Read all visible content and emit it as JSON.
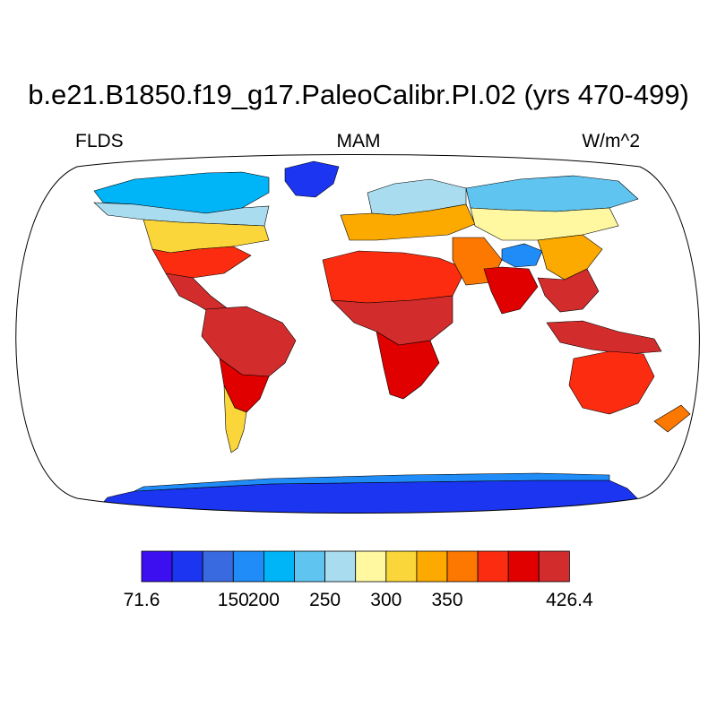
{
  "title": "b.e21.B1850.f19_g17.PaleoCalibr.PI.02 (yrs 470-499)",
  "left_string": "FLDS",
  "center_string": "MAM",
  "right_string": "W/m^2",
  "map": {
    "projection": "Robinson",
    "field": "Downwelling longwave flux at surface over land (colored land only, ocean white)",
    "regions": [
      {
        "name": "arctic-canada-greenland",
        "level": 4
      },
      {
        "name": "north-america-mid",
        "level": 8
      },
      {
        "name": "southeast-usa",
        "level": 11
      },
      {
        "name": "central-america",
        "level": 13
      },
      {
        "name": "amazon",
        "level": 13
      },
      {
        "name": "patagonia",
        "level": 8
      },
      {
        "name": "northern-europe",
        "level": 6
      },
      {
        "name": "southern-europe",
        "level": 9
      },
      {
        "name": "sahara",
        "level": 11
      },
      {
        "name": "central-africa",
        "level": 13
      },
      {
        "name": "southern-africa",
        "level": 12
      },
      {
        "name": "siberia",
        "level": 5
      },
      {
        "name": "tibetan-plateau",
        "level": 3
      },
      {
        "name": "india",
        "level": 12
      },
      {
        "name": "maritime-continent",
        "level": 13
      },
      {
        "name": "australia",
        "level": 11
      },
      {
        "name": "antarctica",
        "level": 1
      }
    ]
  },
  "colorbar": {
    "colors": [
      "#3b0ff0",
      "#1b35f0",
      "#3a6ae0",
      "#1f8cf8",
      "#00b4f8",
      "#5fc4f0",
      "#aadcf0",
      "#fff8a0",
      "#fbd63a",
      "#fcaa00",
      "#fc7800",
      "#fc2c10",
      "#e00000",
      "#d22c2c"
    ],
    "labels": [
      {
        "text": "71.6",
        "boundary": 0
      },
      {
        "text": "150",
        "boundary": 3
      },
      {
        "text": "200",
        "boundary": 4
      },
      {
        "text": "250",
        "boundary": 6
      },
      {
        "text": "300",
        "boundary": 8
      },
      {
        "text": "350",
        "boundary": 10
      },
      {
        "text": "426.4",
        "boundary": 14
      }
    ]
  }
}
